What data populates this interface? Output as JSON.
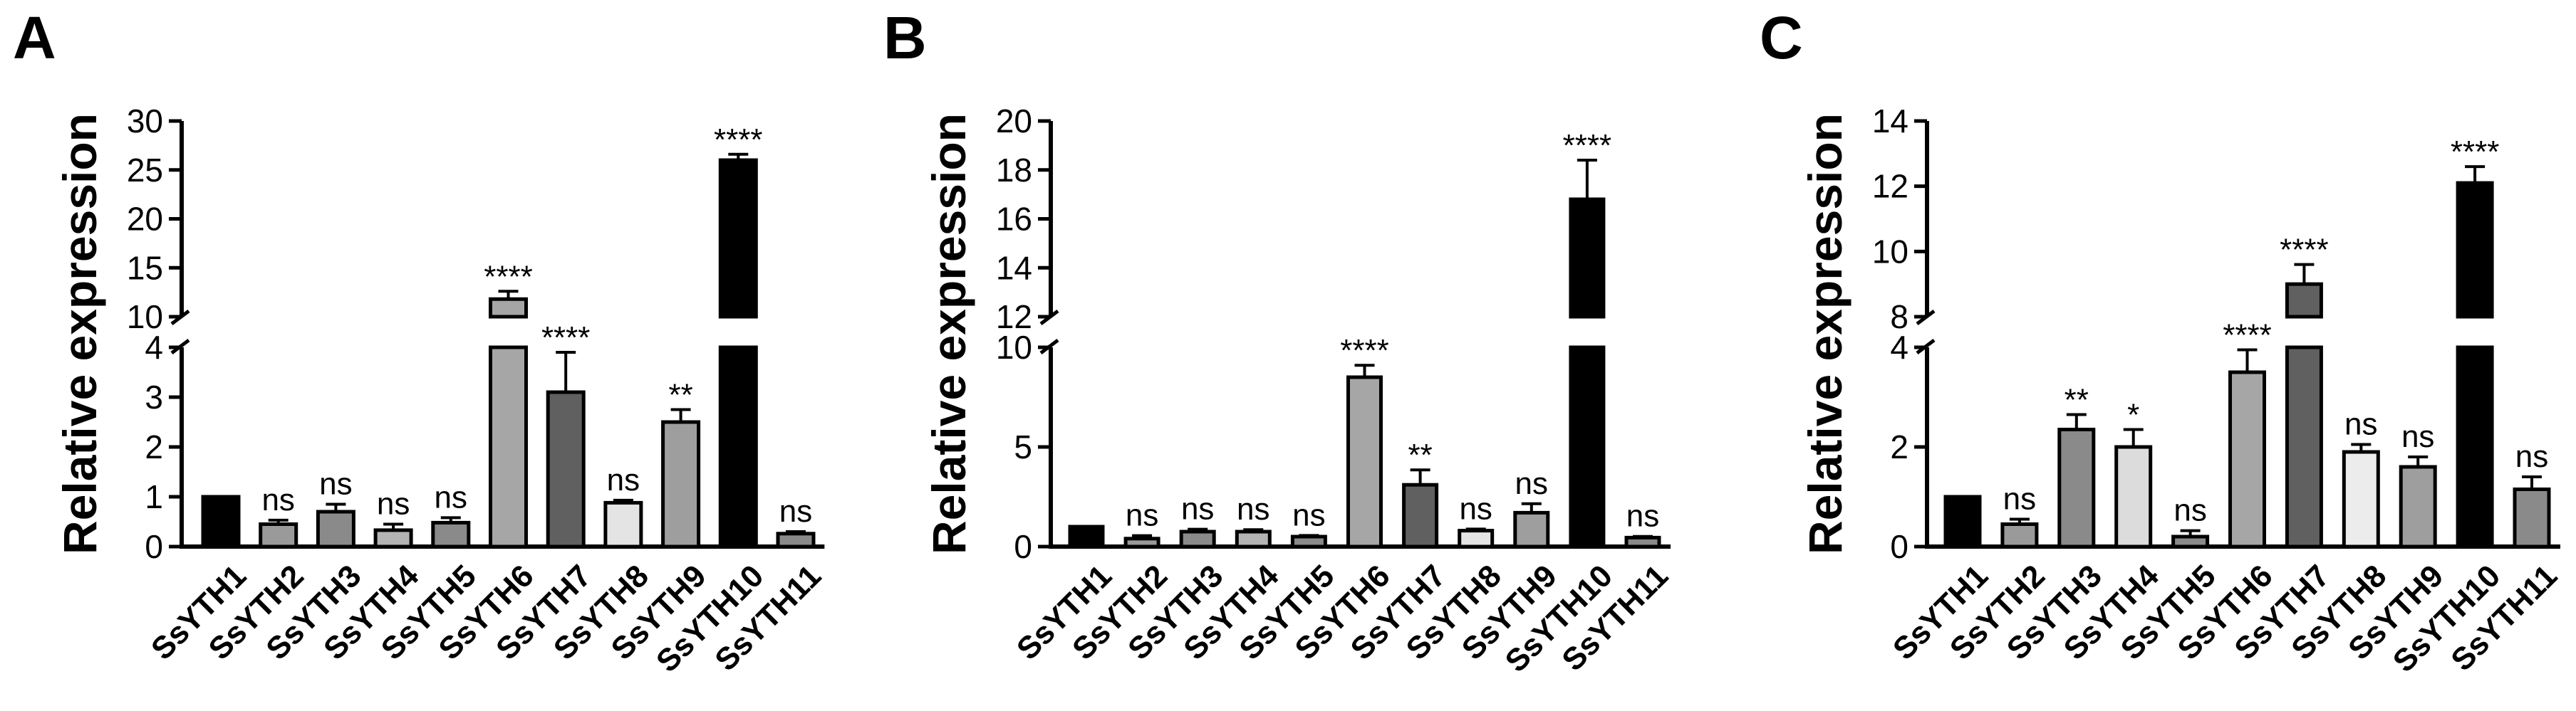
{
  "chart_data": [
    {
      "panel": "A",
      "type": "bar",
      "ylabel": "Relative expression",
      "categories": [
        "SsYTH1",
        "SsYTH2",
        "SsYTH3",
        "SsYTH4",
        "SsYTH5",
        "SsYTH6",
        "SsYTH7",
        "SsYTH8",
        "SsYTH9",
        "SsYTH10",
        "SsYTH11"
      ],
      "values": [
        1.0,
        0.45,
        0.7,
        0.33,
        0.48,
        11.8,
        3.1,
        0.88,
        2.5,
        26.0,
        0.26
      ],
      "errors": [
        0,
        0.08,
        0.15,
        0.12,
        0.1,
        0.8,
        0.8,
        0.05,
        0.25,
        0.6,
        0.04
      ],
      "significance": [
        "",
        "ns",
        "ns",
        "ns",
        "ns",
        "****",
        "****",
        "ns",
        "**",
        "****",
        "ns"
      ],
      "fills": [
        "#000000",
        "#9a9a9a",
        "#8a8a8a",
        "#b4b4b4",
        "#8a8a8a",
        "#a6a6a6",
        "#606060",
        "#e4e4e4",
        "#9e9e9e",
        "#000000",
        "#8a8a8a"
      ],
      "y_axis_break": {
        "lower": [
          0,
          4
        ],
        "upper": [
          10,
          30
        ]
      },
      "yticks_lower": [
        "0",
        "1",
        "2",
        "3",
        "4"
      ],
      "yticks_upper": [
        "10",
        "15",
        "20",
        "25",
        "30"
      ]
    },
    {
      "panel": "B",
      "type": "bar",
      "ylabel": "Relative expression",
      "categories": [
        "SsYTH1",
        "SsYTH2",
        "SsYTH3",
        "SsYTH4",
        "SsYTH5",
        "SsYTH6",
        "SsYTH7",
        "SsYTH8",
        "SsYTH9",
        "SsYTH10",
        "SsYTH11"
      ],
      "values": [
        1.0,
        0.4,
        0.75,
        0.75,
        0.5,
        8.5,
        3.1,
        0.8,
        1.7,
        16.8,
        0.45
      ],
      "errors": [
        0,
        0.15,
        0.12,
        0.1,
        0.06,
        0.6,
        0.75,
        0.08,
        0.45,
        1.6,
        0.06
      ],
      "significance": [
        "",
        "ns",
        "ns",
        "ns",
        "ns",
        "****",
        "**",
        "ns",
        "ns",
        "****",
        "ns"
      ],
      "fills": [
        "#000000",
        "#9a9a9a",
        "#8a8a8a",
        "#b4b4b4",
        "#8a8a8a",
        "#a6a6a6",
        "#606060",
        "#e4e4e4",
        "#9e9e9e",
        "#000000",
        "#8a8a8a"
      ],
      "y_axis_break": {
        "lower": [
          0,
          10
        ],
        "upper": [
          12,
          20
        ]
      },
      "yticks_lower": [
        "0",
        "5",
        "10"
      ],
      "yticks_upper": [
        "12",
        "14",
        "16",
        "18",
        "20"
      ]
    },
    {
      "panel": "C",
      "type": "bar",
      "ylabel": "Relative expression",
      "categories": [
        "SsYTH1",
        "SsYTH2",
        "SsYTH3",
        "SsYTH4",
        "SsYTH5",
        "SsYTH6",
        "SsYTH7",
        "SsYTH8",
        "SsYTH9",
        "SsYTH10",
        "SsYTH11"
      ],
      "values": [
        1.0,
        0.45,
        2.35,
        2.0,
        0.2,
        3.5,
        9.0,
        1.9,
        1.6,
        12.1,
        1.15
      ],
      "errors": [
        0,
        0.1,
        0.3,
        0.35,
        0.12,
        0.45,
        0.6,
        0.15,
        0.2,
        0.5,
        0.25
      ],
      "significance": [
        "",
        "ns",
        "**",
        "*",
        "ns",
        "****",
        "****",
        "ns",
        "ns",
        "****",
        "ns"
      ],
      "fills": [
        "#000000",
        "#9a9a9a",
        "#8a8a8a",
        "#dcdcdc",
        "#8a8a8a",
        "#a6a6a6",
        "#606060",
        "#ececec",
        "#9e9e9e",
        "#000000",
        "#8a8a8a"
      ],
      "y_axis_break": {
        "lower": [
          0,
          4
        ],
        "upper": [
          8,
          14
        ]
      },
      "yticks_lower": [
        "0",
        "2",
        "4"
      ],
      "yticks_upper": [
        "8",
        "10",
        "12",
        "14"
      ]
    }
  ]
}
